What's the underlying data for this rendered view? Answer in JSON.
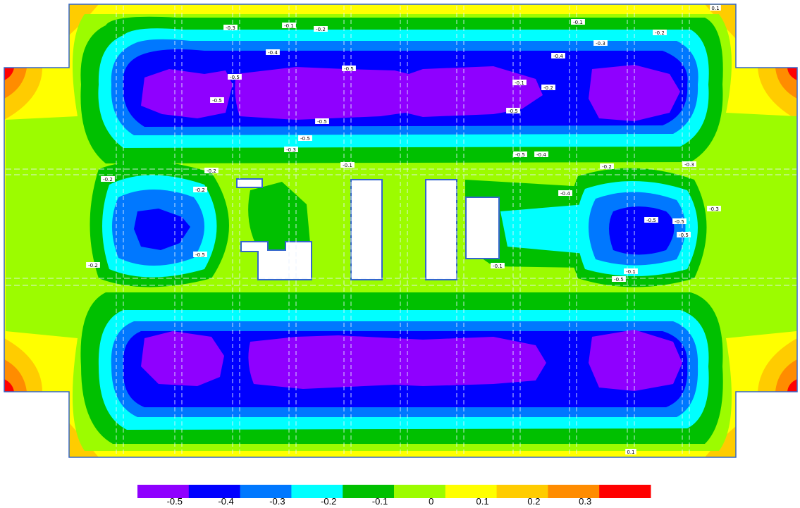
{
  "colors": {
    "bands": [
      "#8f00ff",
      "#0000ff",
      "#0078ff",
      "#00ffff",
      "#00c000",
      "#9cfc00",
      "#ffff00",
      "#ffcc00",
      "#ff8c00",
      "#ff0000"
    ],
    "outline": "#3366cc",
    "grid": "#c8c8c8",
    "hole": "#ffffff"
  },
  "legend": {
    "ticks": [
      "-0.5",
      "-0.4",
      "-0.3",
      "-0.2",
      "-0.1",
      "0",
      "0.1",
      "0.2",
      "0.3"
    ]
  },
  "contour_labels": [
    "-0.1",
    "-0.2",
    "-0.3",
    "-0.4",
    "-0.5",
    "-0.5",
    "-0.5",
    "-0.5",
    "-0.3",
    "-0.5",
    "-0.4",
    "-0.3",
    "-0.1",
    "-0.2",
    "-0.1",
    "-0.2",
    "-0.5",
    "-0.5",
    "-0.4",
    "-0.2",
    "-0.1",
    "-0.3",
    "-0.2",
    "-0.2",
    "-0.2",
    "-0.5",
    "-0.5",
    "-0.5",
    "-0.5",
    "-0.5",
    "-0.4",
    "-0.3",
    "-0.2",
    "-0.1",
    "-0.1",
    "0.1",
    "0.1"
  ]
}
